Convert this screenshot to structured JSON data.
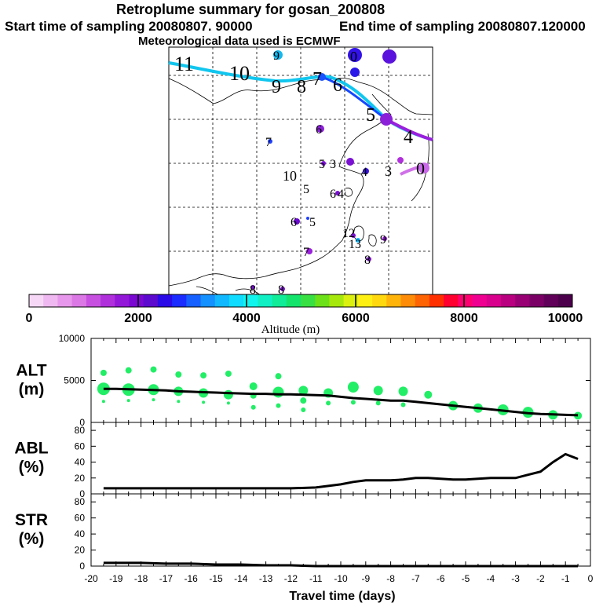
{
  "header": {
    "title": "Retroplume summary for gosan_200808",
    "start_label": "Start time of sampling 20080807. 90000",
    "end_label": "End time of sampling 20080807.120000",
    "met_label": "Meteorological data used is ECMWF"
  },
  "colors": {
    "plume": "#22ee66",
    "line": "#000000",
    "scale": [
      "#f6d8f6",
      "#f0b8f0",
      "#e898ec",
      "#dc78e6",
      "#c850e0",
      "#b030dc",
      "#9418d8",
      "#7a08d2",
      "#5c0ace",
      "#2a0ae6",
      "#1a2cff",
      "#1660ff",
      "#1490ff",
      "#12b8ff",
      "#10dcff",
      "#10f6ee",
      "#10f0c4",
      "#10ec98",
      "#14e46c",
      "#38e044",
      "#6ce018",
      "#a6e80c",
      "#dcf010",
      "#fff014",
      "#ffd810",
      "#ffb40c",
      "#ff8c08",
      "#ff6404",
      "#ff3000",
      "#ff0030",
      "#ff0070",
      "#f00090",
      "#d8008c",
      "#b80080",
      "#980074",
      "#7a0066",
      "#600058",
      "#4c004c"
    ]
  },
  "map": {
    "numeric_labels": [
      "11",
      "10",
      "9",
      "8",
      "7",
      "6",
      "5",
      "4",
      "3",
      "0",
      "10",
      "5",
      "6",
      "4",
      "6",
      "5",
      "13",
      "12",
      "9",
      "8",
      "7",
      "8",
      "8",
      "7",
      "6",
      "5",
      "4",
      "3",
      "9",
      "0"
    ],
    "colorbar": {
      "tick_labels": [
        "0",
        "2000",
        "4000",
        "6000",
        "8000",
        "10000"
      ],
      "title": "Altitude (m)"
    }
  },
  "chart_data": [
    {
      "type": "line",
      "name": "altitude",
      "ylabel": "ALT\n(m)",
      "ylabel_lines": [
        "ALT",
        "(m)"
      ],
      "ylim": [
        0,
        10000
      ],
      "yticks": [
        "10000",
        "5000",
        "0"
      ],
      "x": [
        -19.5,
        -19,
        -18.5,
        -18,
        -17.5,
        -17,
        -16.5,
        -16,
        -15.5,
        -15,
        -14.5,
        -14,
        -13.5,
        -13,
        -12.5,
        -12,
        -11.5,
        -11,
        -10.5,
        -10,
        -9.5,
        -9,
        -8.5,
        -8,
        -7.5,
        -7,
        -6.5,
        -6,
        -5.5,
        -5,
        -4.5,
        -4,
        -3.5,
        -3,
        -2.5,
        -2,
        -1.5,
        -1,
        -0.5
      ],
      "y": [
        4000,
        4000,
        3950,
        3900,
        3850,
        3800,
        3700,
        3650,
        3600,
        3550,
        3500,
        3450,
        3400,
        3400,
        3350,
        3350,
        3300,
        3250,
        3200,
        3050,
        2900,
        2800,
        2700,
        2600,
        2600,
        2450,
        2300,
        2150,
        2000,
        1850,
        1700,
        1550,
        1400,
        1250,
        1100,
        1000,
        950,
        900,
        850
      ],
      "plume_x": [
        -19.5,
        -19.5,
        -19.5,
        -18.5,
        -18.5,
        -18.5,
        -17.5,
        -17.5,
        -17.5,
        -16.5,
        -16.5,
        -16.5,
        -15.5,
        -15.5,
        -15.5,
        -14.5,
        -14.5,
        -14.5,
        -13.5,
        -13.5,
        -13.5,
        -12.5,
        -12.5,
        -12.5,
        -11.5,
        -11.5,
        -11.5,
        -10.5,
        -10.5,
        -9.5,
        -9.5,
        -8.5,
        -8.5,
        -7.5,
        -7.5,
        -6.5,
        -5.5,
        -4.5,
        -3.5,
        -2.5,
        -1.5,
        -0.5
      ],
      "plume_y": [
        4000,
        5900,
        2500,
        3900,
        6200,
        2600,
        3900,
        6300,
        2700,
        3700,
        5700,
        2500,
        3500,
        5600,
        2400,
        3300,
        5800,
        2300,
        4300,
        3200,
        1800,
        3600,
        5500,
        2000,
        3800,
        2600,
        1500,
        3500,
        2300,
        4200,
        2400,
        3800,
        2300,
        3700,
        2100,
        3300,
        2000,
        1700,
        1500,
        1200,
        900,
        800
      ],
      "plume_size": [
        8,
        4,
        2,
        8,
        4,
        2,
        7,
        4,
        2,
        6,
        4,
        2,
        6,
        4,
        2,
        6,
        4,
        2,
        5,
        4,
        3,
        7,
        4,
        3,
        6,
        4,
        3,
        6,
        3,
        7,
        3,
        6,
        3,
        6,
        3,
        5,
        6,
        6,
        7,
        7,
        6,
        5
      ],
      "show_x_labels": false
    },
    {
      "type": "line",
      "name": "abl",
      "ylabel": "ABL\n(%)",
      "ylabel_lines": [
        "ABL",
        "(%)"
      ],
      "ylim": [
        0,
        90
      ],
      "yticks": [
        "80",
        "60",
        "40",
        "20",
        "0"
      ],
      "x": [
        -19.5,
        -19,
        -18,
        -17,
        -16,
        -15,
        -14,
        -13,
        -12,
        -11,
        -10.5,
        -10,
        -9.5,
        -9,
        -8.5,
        -8,
        -7.5,
        -7,
        -6.5,
        -6,
        -5.5,
        -5,
        -4.5,
        -4,
        -3.5,
        -3,
        -2.5,
        -2,
        -1.5,
        -1,
        -0.5
      ],
      "y": [
        7,
        7,
        7,
        7,
        7,
        7,
        7,
        7,
        7,
        8,
        10,
        12,
        15,
        17,
        17,
        17,
        18,
        20,
        20,
        19,
        18,
        18,
        19,
        20,
        20,
        20,
        24,
        28,
        40,
        50,
        44
      ],
      "show_x_labels": false
    },
    {
      "type": "line",
      "name": "str",
      "ylabel": "STR\n(%)",
      "ylabel_lines": [
        "STR",
        "(%)"
      ],
      "ylim": [
        0,
        90
      ],
      "yticks": [
        "80",
        "60",
        "40",
        "20",
        "0"
      ],
      "x": [
        -19.5,
        -19,
        -18,
        -17,
        -16,
        -15,
        -14,
        -13,
        -12,
        -11,
        -10,
        -9,
        -8,
        -7,
        -6,
        -5,
        -4,
        -3,
        -2,
        -1,
        -0.5
      ],
      "y": [
        4,
        4,
        4,
        3,
        3,
        2,
        2,
        1,
        1,
        0,
        0,
        0,
        0,
        0,
        0,
        0,
        0,
        0,
        0,
        0,
        0
      ],
      "show_x_labels": true,
      "xlim": [
        -20,
        0
      ],
      "xticks": [
        "-20",
        "-19",
        "-18",
        "-17",
        "-16",
        "-15",
        "-14",
        "-13",
        "-12",
        "-11",
        "-10",
        "-9",
        "-8",
        "-7",
        "-6",
        "-5",
        "-4",
        "-3",
        "-2",
        "-1",
        "0"
      ],
      "xlabel": "Travel time (days)"
    }
  ]
}
